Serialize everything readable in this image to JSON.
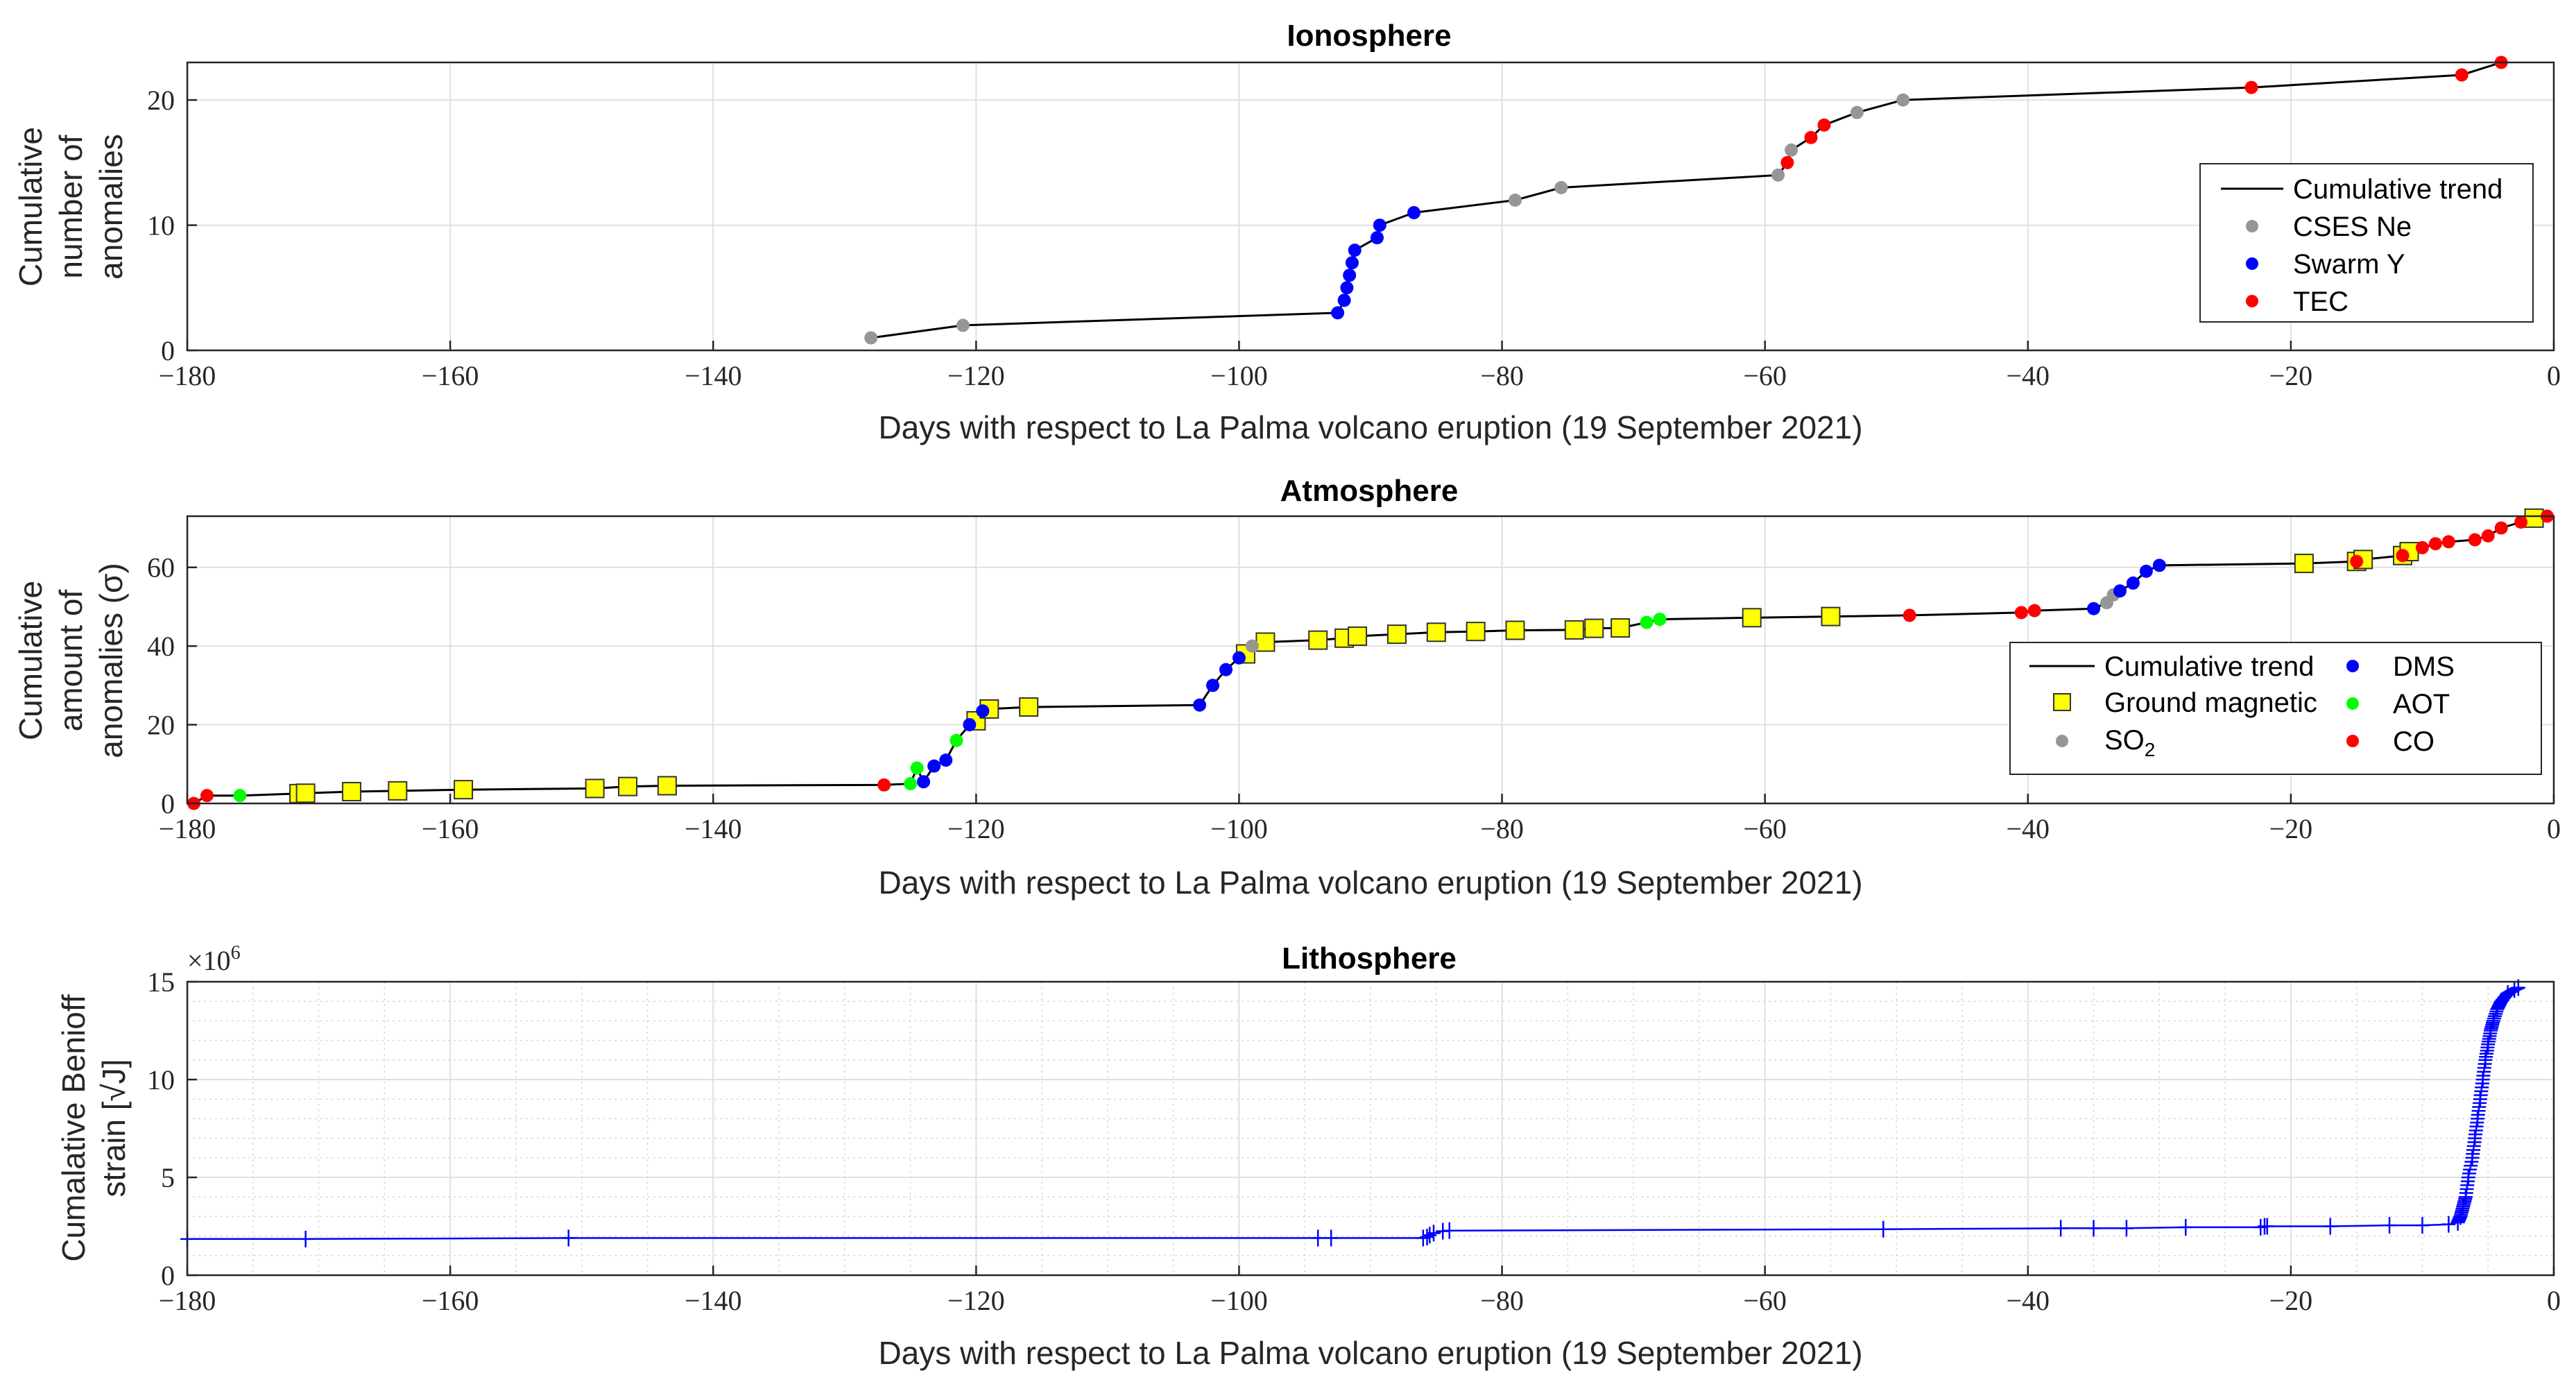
{
  "chart_data": [
    {
      "type": "scatter",
      "title": "Ionosphere",
      "xlabel": "Days with respect to La Palma volcano eruption (19 September 2021)",
      "ylabel": [
        "Cumulative",
        "number of",
        "anomalies"
      ],
      "xlim": [
        -180,
        0
      ],
      "ylim": [
        0,
        23
      ],
      "xticks": [
        -180,
        -160,
        -140,
        -120,
        -100,
        -80,
        -60,
        -40,
        -20,
        0
      ],
      "xtick_labels": [
        "−180",
        "−160",
        "−140",
        "−120",
        "−100",
        "−80",
        "−60",
        "−40",
        "−20",
        "0"
      ],
      "yticks": [
        0,
        10,
        20
      ],
      "ytick_labels": [
        "0",
        "10",
        "20"
      ],
      "grid": true,
      "legend_position": "right",
      "legend": [
        {
          "label": "Cumulative trend",
          "kind": "line",
          "color": "#000000"
        },
        {
          "label": "CSES Ne",
          "kind": "dot",
          "color": "#969696"
        },
        {
          "label": "Swarm Y",
          "kind": "dot",
          "color": "#0000ff"
        },
        {
          "label": "TEC",
          "kind": "dot",
          "color": "#ff0000"
        }
      ],
      "trend": [
        [
          -128,
          1
        ],
        [
          -121,
          2
        ],
        [
          -92.5,
          3
        ],
        [
          -92,
          4
        ],
        [
          -91.8,
          5
        ],
        [
          -91.6,
          6
        ],
        [
          -91.4,
          7
        ],
        [
          -91.2,
          8
        ],
        [
          -89.5,
          9
        ],
        [
          -89.3,
          10
        ],
        [
          -86.7,
          11
        ],
        [
          -79,
          12
        ],
        [
          -75.5,
          13
        ],
        [
          -59,
          14
        ],
        [
          -58.3,
          15
        ],
        [
          -58,
          16
        ],
        [
          -56.5,
          17
        ],
        [
          -55.5,
          18
        ],
        [
          -53,
          19
        ],
        [
          -49.5,
          20
        ],
        [
          -23,
          21
        ],
        [
          -7,
          22
        ],
        [
          -4,
          23
        ]
      ],
      "series": [
        {
          "name": "CSES Ne",
          "color": "#969696",
          "points": [
            [
              -128,
              1
            ],
            [
              -121,
              2
            ],
            [
              -79,
              12
            ],
            [
              -75.5,
              13
            ],
            [
              -59,
              14
            ],
            [
              -58,
              16
            ],
            [
              -53,
              19
            ],
            [
              -49.5,
              20
            ]
          ]
        },
        {
          "name": "Swarm Y",
          "color": "#0000ff",
          "points": [
            [
              -92.5,
              3
            ],
            [
              -92,
              4
            ],
            [
              -91.8,
              5
            ],
            [
              -91.6,
              6
            ],
            [
              -91.4,
              7
            ],
            [
              -91.2,
              8
            ],
            [
              -89.5,
              9
            ],
            [
              -89.3,
              10
            ],
            [
              -86.7,
              11
            ]
          ]
        },
        {
          "name": "TEC",
          "color": "#ff0000",
          "points": [
            [
              -58.3,
              15
            ],
            [
              -56.5,
              17
            ],
            [
              -55.5,
              18
            ],
            [
              -23,
              21
            ],
            [
              -7,
              22
            ],
            [
              -4,
              23
            ]
          ]
        }
      ]
    },
    {
      "type": "scatter",
      "title": "Atmosphere",
      "xlabel": "Days with respect to La Palma volcano eruption (19 September 2021)",
      "ylabel": [
        "Cumulative",
        "amount of",
        "anomalies (σ)"
      ],
      "xlim": [
        -180,
        0
      ],
      "ylim": [
        0,
        73
      ],
      "xticks": [
        -180,
        -160,
        -140,
        -120,
        -100,
        -80,
        -60,
        -40,
        -20,
        0
      ],
      "xtick_labels": [
        "−180",
        "−160",
        "−140",
        "−120",
        "−100",
        "−80",
        "−60",
        "−40",
        "−20",
        "0"
      ],
      "yticks": [
        0,
        20,
        40,
        60
      ],
      "ytick_labels": [
        "0",
        "20",
        "40",
        "60"
      ],
      "grid": true,
      "legend_position": "right",
      "legend": [
        {
          "label": "Cumulative trend",
          "kind": "line",
          "color": "#000000"
        },
        {
          "label": "Ground magnetic",
          "kind": "square",
          "color": "#ffff00"
        },
        {
          "label": "SO2",
          "kind": "dot",
          "color": "#969696"
        },
        {
          "label": "DMS",
          "kind": "dot",
          "color": "#0000ff"
        },
        {
          "label": "AOT",
          "kind": "dot",
          "color": "#00ff00"
        },
        {
          "label": "CO",
          "kind": "dot",
          "color": "#ff0000"
        }
      ],
      "trend": [
        [
          -179.5,
          0
        ],
        [
          -178.5,
          2
        ],
        [
          -176,
          2
        ],
        [
          -171.5,
          2.5
        ],
        [
          -171,
          2.6
        ],
        [
          -167.5,
          3
        ],
        [
          -164,
          3.2
        ],
        [
          -159,
          3.5
        ],
        [
          -149,
          3.8
        ],
        [
          -146.5,
          4.3
        ],
        [
          -143.5,
          4.5
        ],
        [
          -127,
          4.7
        ],
        [
          -125,
          5
        ],
        [
          -124.5,
          9
        ],
        [
          -124,
          5.5
        ],
        [
          -123.2,
          9.5
        ],
        [
          -122.3,
          11
        ],
        [
          -121.5,
          16
        ],
        [
          -120.5,
          20
        ],
        [
          -120,
          21
        ],
        [
          -119.5,
          23.5
        ],
        [
          -119,
          24
        ],
        [
          -116,
          24.5
        ],
        [
          -103,
          25
        ],
        [
          -102,
          30
        ],
        [
          -101,
          34
        ],
        [
          -100,
          37
        ],
        [
          -99.5,
          38
        ],
        [
          -99,
          40
        ],
        [
          -98,
          41
        ],
        [
          -94,
          41.5
        ],
        [
          -92,
          42
        ],
        [
          -91,
          42.5
        ],
        [
          -88,
          43
        ],
        [
          -85,
          43.5
        ],
        [
          -82,
          43.7
        ],
        [
          -79,
          44
        ],
        [
          -74.5,
          44.1
        ],
        [
          -73,
          44.5
        ],
        [
          -71,
          44.6
        ],
        [
          -69,
          46
        ],
        [
          -68,
          46.8
        ],
        [
          -61,
          47.2
        ],
        [
          -55,
          47.5
        ],
        [
          -49,
          47.8
        ],
        [
          -40.5,
          48.5
        ],
        [
          -39.5,
          49
        ],
        [
          -35,
          49.5
        ],
        [
          -34,
          51
        ],
        [
          -33.5,
          53
        ],
        [
          -33,
          54
        ],
        [
          -32,
          56
        ],
        [
          -31,
          59
        ],
        [
          -30,
          60.5
        ],
        [
          -19,
          61
        ],
        [
          -15,
          61.5
        ],
        [
          -14.5,
          62
        ],
        [
          -11.5,
          63
        ],
        [
          -11,
          64
        ],
        [
          -10,
          65
        ],
        [
          -9,
          66
        ],
        [
          -8,
          66.5
        ],
        [
          -6,
          67
        ],
        [
          -5,
          68
        ],
        [
          -4,
          70
        ],
        [
          -2.5,
          71.5
        ],
        [
          -1.5,
          72.5
        ],
        [
          -0.5,
          73
        ]
      ],
      "series": [
        {
          "name": "Ground magnetic",
          "color": "#ffff00",
          "points": [
            [
              -171.5,
              2.5
            ],
            [
              -171,
              2.6
            ],
            [
              -167.5,
              3
            ],
            [
              -164,
              3.2
            ],
            [
              -159,
              3.5
            ],
            [
              -149,
              3.8
            ],
            [
              -146.5,
              4.3
            ],
            [
              -143.5,
              4.5
            ],
            [
              -120,
              21
            ],
            [
              -119,
              24
            ],
            [
              -116,
              24.5
            ],
            [
              -99.5,
              38
            ],
            [
              -98,
              41
            ],
            [
              -94,
              41.5
            ],
            [
              -92,
              42
            ],
            [
              -91,
              42.5
            ],
            [
              -88,
              43
            ],
            [
              -85,
              43.5
            ],
            [
              -82,
              43.7
            ],
            [
              -79,
              44
            ],
            [
              -74.5,
              44.1
            ],
            [
              -73,
              44.5
            ],
            [
              -71,
              44.6
            ],
            [
              -61,
              47.2
            ],
            [
              -55,
              47.5
            ],
            [
              -19,
              61
            ],
            [
              -15,
              61.5
            ],
            [
              -14.5,
              62
            ],
            [
              -11.5,
              63
            ],
            [
              -11,
              64
            ],
            [
              -1.5,
              72.5
            ]
          ]
        },
        {
          "name": "SO2",
          "color": "#969696",
          "points": [
            [
              -99,
              40
            ],
            [
              -34,
              51
            ],
            [
              -33.5,
              53
            ]
          ]
        },
        {
          "name": "DMS",
          "color": "#0000ff",
          "points": [
            [
              -124,
              5.5
            ],
            [
              -123.2,
              9.5
            ],
            [
              -122.3,
              11
            ],
            [
              -120.5,
              20
            ],
            [
              -119.5,
              23.5
            ],
            [
              -103,
              25
            ],
            [
              -102,
              30
            ],
            [
              -101,
              34
            ],
            [
              -100,
              37
            ],
            [
              -35,
              49.5
            ],
            [
              -33,
              54
            ],
            [
              -32,
              56
            ],
            [
              -31,
              59
            ],
            [
              -30,
              60.5
            ]
          ]
        },
        {
          "name": "AOT",
          "color": "#00ff00",
          "points": [
            [
              -176,
              2
            ],
            [
              -125,
              5
            ],
            [
              -124.5,
              9
            ],
            [
              -121.5,
              16
            ],
            [
              -69,
              46
            ],
            [
              -68,
              46.8
            ]
          ]
        },
        {
          "name": "CO",
          "color": "#ff0000",
          "points": [
            [
              -179.5,
              0
            ],
            [
              -178.5,
              2
            ],
            [
              -127,
              4.7
            ],
            [
              -49,
              47.8
            ],
            [
              -40.5,
              48.5
            ],
            [
              -39.5,
              49
            ],
            [
              -15,
              61.5
            ],
            [
              -11.5,
              63
            ],
            [
              -10,
              65
            ],
            [
              -9,
              66
            ],
            [
              -8,
              66.5
            ],
            [
              -6,
              67
            ],
            [
              -5,
              68
            ],
            [
              -4,
              70
            ],
            [
              -2.5,
              71.5
            ],
            [
              -0.5,
              73
            ]
          ]
        }
      ]
    },
    {
      "type": "line",
      "title": "Lithosphere",
      "xlabel": "Days with respect to La Palma volcano eruption (19 September 2021)",
      "ylabel": [
        "Cumalative Benioff",
        "strain [√J]"
      ],
      "y_exponent": "×10",
      "y_exponent_power": "6",
      "xlim": [
        -180,
        0
      ],
      "ylim": [
        0,
        15
      ],
      "xticks": [
        -180,
        -160,
        -140,
        -120,
        -100,
        -80,
        -60,
        -40,
        -20,
        0
      ],
      "xtick_labels": [
        "−180",
        "−160",
        "−140",
        "−120",
        "−100",
        "−80",
        "−60",
        "−40",
        "−20",
        "0"
      ],
      "yticks": [
        0,
        5,
        10,
        15
      ],
      "ytick_labels": [
        "0",
        "5",
        "10",
        "15"
      ],
      "grid": true,
      "color": "#0000ff",
      "marker": "plus",
      "points": [
        [
          -180,
          1.85
        ],
        [
          -171,
          1.85
        ],
        [
          -151,
          1.9
        ],
        [
          -94,
          1.9
        ],
        [
          -93,
          1.9
        ],
        [
          -86,
          1.9
        ],
        [
          -85.7,
          1.95
        ],
        [
          -85.5,
          2.05
        ],
        [
          -85.2,
          2.15
        ],
        [
          -84.5,
          2.25
        ],
        [
          -84,
          2.28
        ],
        [
          -51,
          2.35
        ],
        [
          -37.5,
          2.4
        ],
        [
          -35,
          2.4
        ],
        [
          -32.5,
          2.4
        ],
        [
          -28,
          2.45
        ],
        [
          -22.3,
          2.45
        ],
        [
          -22,
          2.5
        ],
        [
          -21.8,
          2.5
        ],
        [
          -17,
          2.5
        ],
        [
          -12.5,
          2.55
        ],
        [
          -10,
          2.55
        ],
        [
          -8,
          2.6
        ],
        [
          -7.3,
          2.7
        ],
        [
          -7.1,
          3.0
        ],
        [
          -6.9,
          3.5
        ],
        [
          -6.7,
          4.0
        ],
        [
          -6.5,
          5.0
        ],
        [
          -6.2,
          6.0
        ],
        [
          -6.0,
          7.0
        ],
        [
          -5.8,
          8.0
        ],
        [
          -5.6,
          9.0
        ],
        [
          -5.4,
          10.0
        ],
        [
          -5.2,
          11.0
        ],
        [
          -5.0,
          11.8
        ],
        [
          -4.8,
          12.5
        ],
        [
          -4.6,
          13.0
        ],
        [
          -4.3,
          13.6
        ],
        [
          -4.0,
          14.0
        ],
        [
          -3.5,
          14.4
        ],
        [
          -3.0,
          14.6
        ],
        [
          -2.7,
          14.7
        ]
      ]
    }
  ]
}
